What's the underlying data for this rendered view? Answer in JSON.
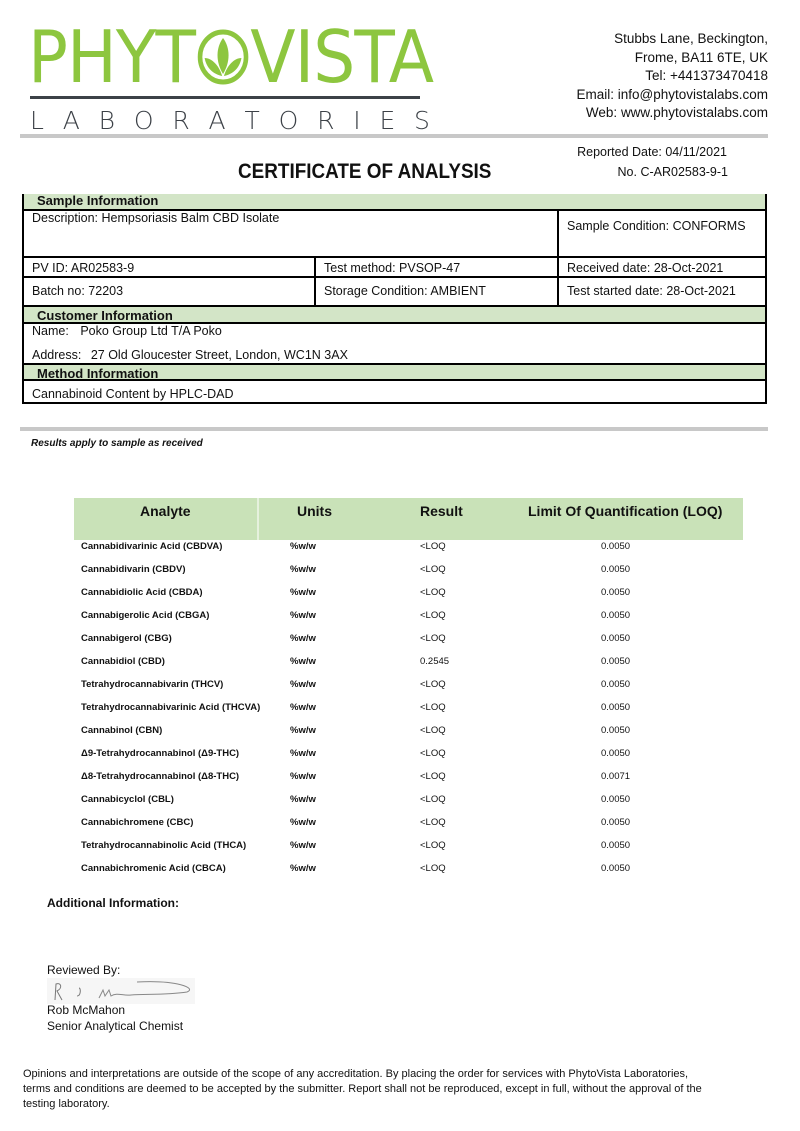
{
  "logo": {
    "left": "PHYT",
    "right": "VISTA",
    "subtitle": [
      "L",
      "A",
      "B",
      "O",
      "R",
      "A",
      "T",
      "O",
      "R",
      "I",
      "E",
      "S"
    ],
    "brand_color": "#8dc63f"
  },
  "address": [
    "Stubbs Lane, Beckington,",
    "Frome, BA11 6TE, UK",
    "Tel: +441373470418",
    "Email: info@phytovistalabs.com",
    "Web: www.phytovistalabs.com"
  ],
  "title": "CERTIFICATE OF ANALYSIS",
  "reported_date": "Reported Date: 04/11/2021",
  "certificate_no": "No. C-AR02583-9-1",
  "sample_info": {
    "heading": "Sample Information",
    "description": "Description: Hempsoriasis Balm CBD Isolate",
    "condition": "Sample Condition: CONFORMS",
    "pv_id": "PV ID: AR02583-9",
    "test_method": "Test method: PVSOP-47",
    "received_date": "Received date: 28-Oct-2021",
    "batch_no": "Batch no: 72203",
    "storage": "Storage Condition: AMBIENT",
    "test_started": "Test started date: 28-Oct-2021"
  },
  "customer_info": {
    "heading": "Customer Information",
    "name_label": "Name:",
    "name": "Poko Group Ltd T/A Poko",
    "address_label": "Address:",
    "address": "27 Old Gloucester Street, London, WC1N 3AX"
  },
  "method_info": {
    "heading": "Method Information",
    "method": "Cannabinoid Content by HPLC-DAD"
  },
  "results_note": "Results apply to sample as received",
  "results": {
    "headers": {
      "analyte": "Analyte",
      "units": "Units",
      "result": "Result",
      "loq": "Limit Of Quantification (LOQ)"
    },
    "header_color": "#c9e2b8",
    "rows": [
      {
        "analyte": "Cannabidivarinic Acid (CBDVA)",
        "units": "%w/w",
        "result": "<LOQ",
        "loq": "0.0050"
      },
      {
        "analyte": "Cannabidivarin (CBDV)",
        "units": "%w/w",
        "result": "<LOQ",
        "loq": "0.0050"
      },
      {
        "analyte": "Cannabidiolic Acid (CBDA)",
        "units": "%w/w",
        "result": "<LOQ",
        "loq": "0.0050"
      },
      {
        "analyte": "Cannabigerolic Acid (CBGA)",
        "units": "%w/w",
        "result": "<LOQ",
        "loq": "0.0050"
      },
      {
        "analyte": "Cannabigerol (CBG)",
        "units": "%w/w",
        "result": "<LOQ",
        "loq": "0.0050"
      },
      {
        "analyte": "Cannabidiol (CBD)",
        "units": "%w/w",
        "result": "0.2545",
        "loq": "0.0050"
      },
      {
        "analyte": "Tetrahydrocannabivarin (THCV)",
        "units": "%w/w",
        "result": "<LOQ",
        "loq": "0.0050"
      },
      {
        "analyte": "Tetrahydrocannabivarinic Acid (THCVA)",
        "units": "%w/w",
        "result": "<LOQ",
        "loq": "0.0050"
      },
      {
        "analyte": "Cannabinol (CBN)",
        "units": "%w/w",
        "result": "<LOQ",
        "loq": "0.0050"
      },
      {
        "analyte": "Δ9-Tetrahydrocannabinol (Δ9-THC)",
        "units": "%w/w",
        "result": "<LOQ",
        "loq": "0.0050"
      },
      {
        "analyte": "Δ8-Tetrahydrocannabinol (Δ8-THC)",
        "units": "%w/w",
        "result": "<LOQ",
        "loq": "0.0071"
      },
      {
        "analyte": "Cannabicyclol (CBL)",
        "units": "%w/w",
        "result": "<LOQ",
        "loq": "0.0050"
      },
      {
        "analyte": "Cannabichromene (CBC)",
        "units": "%w/w",
        "result": "<LOQ",
        "loq": "0.0050"
      },
      {
        "analyte": "Tetrahydrocannabinolic Acid (THCA)",
        "units": "%w/w",
        "result": "<LOQ",
        "loq": "0.0050"
      },
      {
        "analyte": "Cannabichromenic Acid (CBCA)",
        "units": "%w/w",
        "result": "<LOQ",
        "loq": "0.0050"
      }
    ]
  },
  "additional_info": "Additional Information:",
  "reviewer": {
    "label": "Reviewed By:",
    "name": "Rob McMahon",
    "title": "Senior Analytical Chemist"
  },
  "disclaimer": "Opinions and interpretations are outside of the scope of any accreditation. By placing the order for services with PhytoVista Laboratories, terms and conditions are deemed to be accepted by the submitter. Report shall not be reproduced, except in full, without the approval of the testing laboratory."
}
